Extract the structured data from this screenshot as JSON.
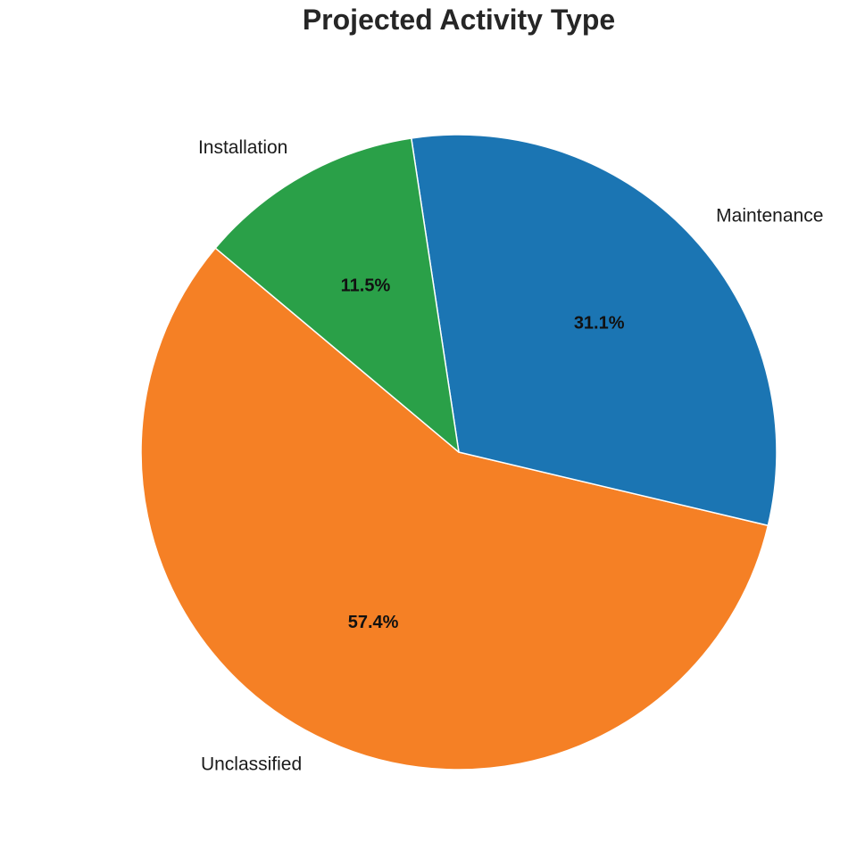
{
  "chart_data": {
    "type": "pie",
    "title": "Projected Activity Type",
    "start_angle_deg": 140,
    "direction": "counterclockwise",
    "slices": [
      {
        "label": "Unclassified",
        "value": 57.4,
        "pct_label": "57.4%",
        "color": "#f58025"
      },
      {
        "label": "Maintenance",
        "value": 31.1,
        "pct_label": "31.1%",
        "color": "#1b75b3"
      },
      {
        "label": "Installation",
        "value": 11.5,
        "pct_label": "11.5%",
        "color": "#2aa048"
      }
    ],
    "edge_color": "#ffffff"
  }
}
